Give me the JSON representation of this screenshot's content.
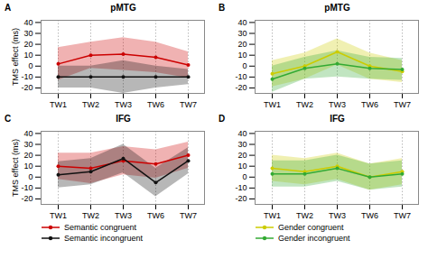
{
  "chart_data": [
    {
      "type": "line",
      "title": "pMTG",
      "annotations": [
        "A"
      ],
      "categories": [
        "TW1",
        "TW2",
        "TW3",
        "TW6",
        "TW7"
      ],
      "ylabel": "TMS effect (ms)",
      "series": [
        {
          "color": "#cc0000",
          "marker": "circle",
          "values": [
            2,
            10,
            11,
            8,
            1
          ],
          "upper": [
            17,
            22,
            26,
            22,
            13
          ],
          "lower": [
            -13,
            -2,
            -4,
            -6,
            -11
          ]
        },
        {
          "color": "#111111",
          "marker": "circle",
          "values": [
            -10,
            -10,
            -10,
            -10,
            -10
          ],
          "upper": [
            0,
            0,
            5,
            0,
            -3
          ],
          "lower": [
            -20,
            -20,
            -25,
            -20,
            -17
          ]
        }
      ],
      "ylim": [
        -25,
        42
      ],
      "yticks": [
        -20,
        -10,
        0,
        10,
        20,
        30,
        40
      ],
      "grid": "x"
    },
    {
      "type": "line",
      "title": "pMTG",
      "annotations": [
        "B"
      ],
      "categories": [
        "TW1",
        "TW2",
        "TW3",
        "TW6",
        "TW7"
      ],
      "series": [
        {
          "color": "#cccc00",
          "marker": "circle",
          "values": [
            -7,
            0,
            13,
            0,
            -5
          ],
          "upper": [
            5,
            12,
            25,
            12,
            5
          ],
          "lower": [
            -19,
            -12,
            1,
            -12,
            -15
          ]
        },
        {
          "color": "#33aa33",
          "marker": "circle",
          "values": [
            -12,
            -2,
            2,
            -2,
            -3
          ],
          "upper": [
            0,
            8,
            14,
            8,
            7
          ],
          "lower": [
            -24,
            -12,
            -10,
            -12,
            -13
          ]
        }
      ],
      "ylim": [
        -25,
        42
      ],
      "yticks": [
        -20,
        -10,
        0,
        10,
        20,
        30,
        40
      ],
      "grid": "x"
    },
    {
      "type": "line",
      "title": "IFG",
      "annotations": [
        "C"
      ],
      "categories": [
        "TW1",
        "TW2",
        "TW3",
        "TW6",
        "TW7"
      ],
      "ylabel": "TMS effect (ms)",
      "series": [
        {
          "name": "Semantic congruent",
          "color": "#cc0000",
          "marker": "circle",
          "values": [
            10,
            8,
            15,
            12,
            20
          ],
          "upper": [
            22,
            22,
            28,
            25,
            32
          ],
          "lower": [
            -2,
            -6,
            2,
            -1,
            8
          ]
        },
        {
          "name": "Semantic incongruent",
          "color": "#111111",
          "marker": "circle",
          "values": [
            2,
            5,
            17,
            -5,
            15
          ],
          "upper": [
            14,
            17,
            30,
            8,
            27
          ],
          "lower": [
            -10,
            -7,
            4,
            -18,
            3
          ]
        }
      ],
      "ylim": [
        -25,
        42
      ],
      "yticks": [
        -20,
        -10,
        0,
        10,
        20,
        30,
        40
      ],
      "grid": "x",
      "legend": "bottom"
    },
    {
      "type": "line",
      "title": "IFG",
      "annotations": [
        "D"
      ],
      "categories": [
        "TW1",
        "TW2",
        "TW3",
        "TW6",
        "TW7"
      ],
      "series": [
        {
          "name": "Gender congruent",
          "color": "#cccc00",
          "marker": "circle",
          "values": [
            8,
            5,
            10,
            0,
            5
          ],
          "upper": [
            20,
            17,
            22,
            12,
            17
          ],
          "lower": [
            -4,
            -7,
            -2,
            -12,
            -7
          ]
        },
        {
          "name": "Gender incongruent",
          "color": "#33aa33",
          "marker": "circle",
          "values": [
            3,
            3,
            8,
            0,
            3
          ],
          "upper": [
            15,
            15,
            20,
            12,
            15
          ],
          "lower": [
            -9,
            -9,
            -4,
            -12,
            -9
          ]
        }
      ],
      "ylim": [
        -25,
        42
      ],
      "yticks": [
        -20,
        -10,
        0,
        10,
        20,
        30,
        40
      ],
      "grid": "x",
      "legend": "bottom"
    }
  ]
}
